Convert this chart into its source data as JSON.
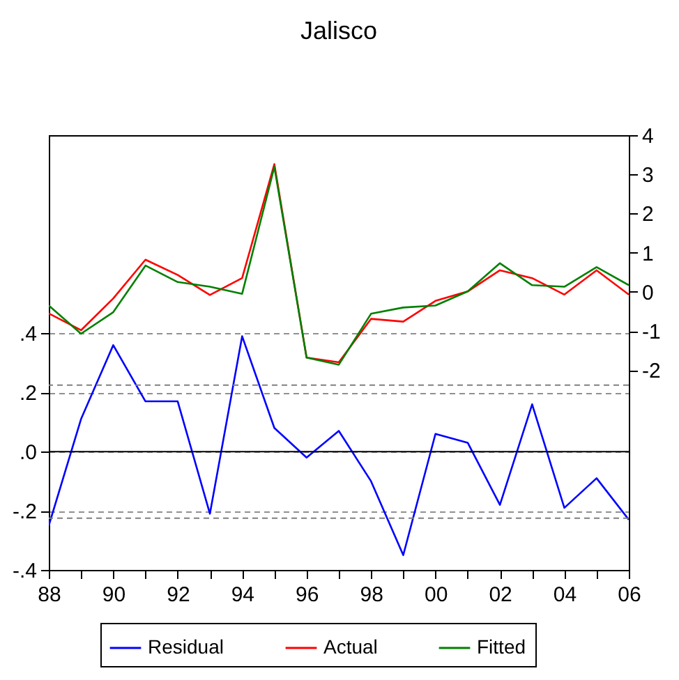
{
  "chart_data": {
    "type": "line",
    "title": "Jalisco",
    "x": [
      1988,
      1989,
      1990,
      1991,
      1992,
      1993,
      1994,
      1995,
      1996,
      1997,
      1998,
      1999,
      2000,
      2001,
      2002,
      2003,
      2004,
      2005,
      2006
    ],
    "series": [
      {
        "name": "Residual",
        "color": "#0000ff",
        "axis": "y",
        "values": [
          -0.25,
          0.11,
          0.36,
          0.17,
          0.17,
          -0.21,
          0.39,
          0.08,
          -0.02,
          0.07,
          -0.1,
          -0.35,
          0.06,
          0.03,
          -0.18,
          0.16,
          -0.19,
          -0.09,
          -0.23
        ]
      },
      {
        "name": "Actual",
        "color": "#ff0000",
        "axis": "y2",
        "values": [
          -0.55,
          -0.98,
          -0.17,
          0.82,
          0.43,
          -0.08,
          0.35,
          3.26,
          -1.68,
          -1.8,
          -0.69,
          -0.76,
          -0.23,
          0.01,
          0.55,
          0.35,
          -0.07,
          0.55,
          -0.07
        ]
      },
      {
        "name": "Fitted",
        "color": "#008000",
        "axis": "y2",
        "values": [
          -0.35,
          -1.07,
          -0.52,
          0.67,
          0.25,
          0.13,
          -0.05,
          3.19,
          -1.68,
          -1.86,
          -0.56,
          -0.4,
          -0.35,
          0.01,
          0.73,
          0.17,
          0.13,
          0.63,
          0.17
        ]
      }
    ],
    "xlim": [
      1988,
      2006
    ],
    "xticks": [
      {
        "value": 1988,
        "label": "88"
      },
      {
        "value": 1989,
        "label": null
      },
      {
        "value": 1990,
        "label": "90"
      },
      {
        "value": 1991,
        "label": null
      },
      {
        "value": 1992,
        "label": "92"
      },
      {
        "value": 1993,
        "label": null
      },
      {
        "value": 1994,
        "label": "94"
      },
      {
        "value": 1995,
        "label": null
      },
      {
        "value": 1996,
        "label": "96"
      },
      {
        "value": 1997,
        "label": null
      },
      {
        "value": 1998,
        "label": "98"
      },
      {
        "value": 1999,
        "label": null
      },
      {
        "value": 2000,
        "label": "00"
      },
      {
        "value": 2001,
        "label": null
      },
      {
        "value": 2002,
        "label": "02"
      },
      {
        "value": 2003,
        "label": null
      },
      {
        "value": 2004,
        "label": "04"
      },
      {
        "value": 2005,
        "label": null
      },
      {
        "value": 2006,
        "label": "06"
      }
    ],
    "ylim": [
      -0.4,
      1.07
    ],
    "yticks": [
      {
        "value": -0.4,
        "label": "-.4"
      },
      {
        "value": -0.2,
        "label": "-.2"
      },
      {
        "value": 0,
        "label": ".0"
      },
      {
        "value": 0.2,
        "label": ".2"
      },
      {
        "value": 0.4,
        "label": ".4"
      }
    ],
    "y2lim": [
      -7.1,
      4
    ],
    "y2ticks": [
      -2,
      -1,
      0,
      1,
      2,
      3,
      4
    ],
    "grid": "y",
    "ref_lines": [
      {
        "axis": "y",
        "value": 0,
        "color": "#000000",
        "line_style": "solid"
      },
      {
        "axis": "y",
        "value": 0.225,
        "color": "#808080",
        "line_style": "dashed"
      },
      {
        "axis": "y",
        "value": -0.225,
        "color": "#808080",
        "line_style": "dashed"
      }
    ],
    "legend": "bottom",
    "marker": "none",
    "line_style": "solid"
  }
}
